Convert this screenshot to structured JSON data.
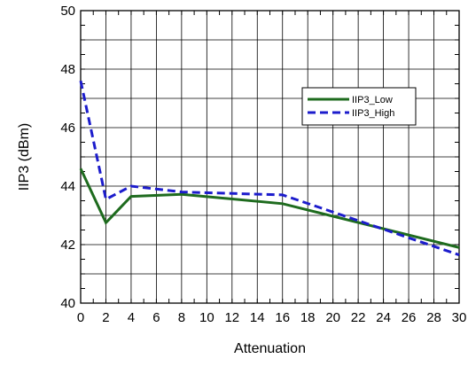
{
  "chart_data": {
    "type": "line",
    "xlabel": "Attenuation",
    "ylabel": "IIP3 (dBm)",
    "xlim": [
      0,
      30
    ],
    "ylim": [
      40,
      50
    ],
    "x_ticks": [
      0,
      2,
      4,
      6,
      8,
      10,
      12,
      14,
      16,
      18,
      20,
      22,
      24,
      26,
      28,
      30
    ],
    "y_ticks": [
      40,
      42,
      44,
      46,
      48,
      50
    ],
    "grid": true,
    "legend_position": "top-right",
    "series": [
      {
        "name": "IIP3_Low",
        "color": "#1e6b1e",
        "style": "solid",
        "x": [
          0,
          2,
          4,
          8,
          16,
          30
        ],
        "y": [
          44.6,
          42.75,
          43.65,
          43.72,
          43.4,
          41.9
        ]
      },
      {
        "name": "IIP3_High",
        "color": "#1c1ccc",
        "style": "dashed",
        "x": [
          0,
          2,
          4,
          8,
          16,
          30
        ],
        "y": [
          47.6,
          43.55,
          44.0,
          43.8,
          43.7,
          41.65
        ]
      }
    ]
  }
}
